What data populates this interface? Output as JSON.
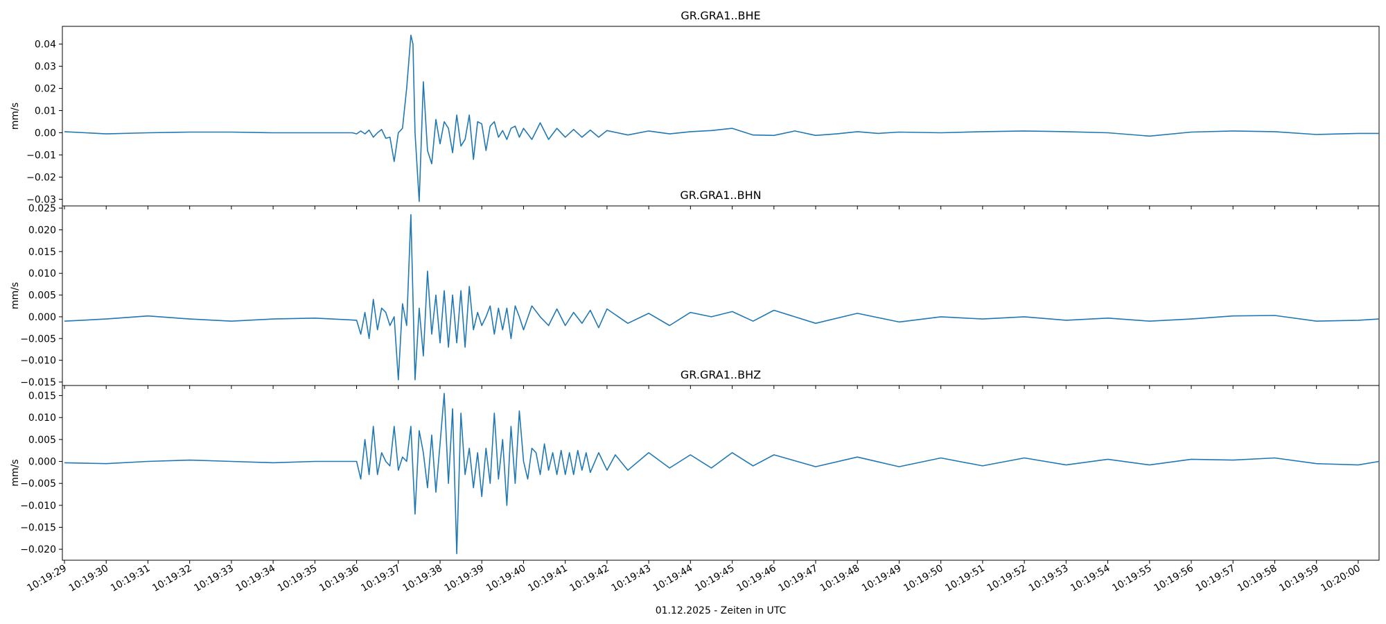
{
  "chart_data": {
    "type": "line",
    "xlabel": "01.12.2025 - Zeiten in UTC",
    "x_tick_labels": [
      "10:19:29",
      "10:19:30",
      "10:19:31",
      "10:19:32",
      "10:19:33",
      "10:19:34",
      "10:19:35",
      "10:19:36",
      "10:19:37",
      "10:19:38",
      "10:19:39",
      "10:19:40",
      "10:19:41",
      "10:19:42",
      "10:19:43",
      "10:19:44",
      "10:19:45",
      "10:19:46",
      "10:19:47",
      "10:19:48",
      "10:19:49",
      "10:19:50",
      "10:19:51",
      "10:19:52",
      "10:19:53",
      "10:19:54",
      "10:19:55",
      "10:19:56",
      "10:19:57",
      "10:19:58",
      "10:19:59",
      "10:20:00"
    ],
    "xlim": [
      "10:19:28.95",
      "10:20:00.50"
    ],
    "line_color": "#1f77b4",
    "grid": false,
    "panels": [
      {
        "title": "GR.GRA1..BHE",
        "ylabel": "mm/s",
        "ylim": [
          -0.033,
          0.048
        ],
        "y_ticks": [
          -0.03,
          -0.02,
          -0.01,
          0.0,
          0.01,
          0.02,
          0.03,
          0.04
        ],
        "y_tick_labels": [
          "−0.03",
          "−0.02",
          "−0.01",
          "0.00",
          "0.01",
          "0.02",
          "0.03",
          "0.04"
        ],
        "series": [
          {
            "x": [
              0.0,
              1.0,
              2.0,
              3.0,
              4.0,
              5.0,
              6.0,
              6.9,
              7.0,
              7.1,
              7.2,
              7.3,
              7.4,
              7.5,
              7.6,
              7.7,
              7.8,
              7.9,
              8.0,
              8.1,
              8.2,
              8.3,
              8.35,
              8.4,
              8.5,
              8.6,
              8.7,
              8.8,
              8.9,
              9.0,
              9.1,
              9.2,
              9.3,
              9.4,
              9.5,
              9.6,
              9.7,
              9.8,
              9.9,
              10.0,
              10.1,
              10.2,
              10.3,
              10.4,
              10.5,
              10.6,
              10.7,
              10.8,
              10.9,
              11.0,
              11.2,
              11.4,
              11.6,
              11.8,
              12.0,
              12.2,
              12.4,
              12.6,
              12.8,
              13.0,
              13.5,
              14.0,
              14.5,
              15.0,
              15.5,
              16.0,
              16.5,
              17.0,
              17.5,
              18.0,
              18.5,
              19.0,
              19.5,
              20.0,
              21.0,
              22.0,
              23.0,
              24.0,
              25.0,
              26.0,
              27.0,
              28.0,
              29.0,
              30.0,
              31.0,
              31.5
            ],
            "y": [
              0.0005,
              -0.0005,
              0.0,
              0.0003,
              0.0003,
              0.0,
              0.0,
              0.0,
              -0.0005,
              0.0008,
              -0.0005,
              0.0012,
              -0.002,
              0.0,
              0.0015,
              -0.0025,
              -0.002,
              -0.013,
              0.0,
              0.002,
              0.02,
              0.044,
              0.04,
              0.0,
              -0.031,
              0.023,
              -0.008,
              -0.014,
              0.006,
              -0.005,
              0.005,
              0.002,
              -0.009,
              0.008,
              -0.006,
              -0.003,
              0.008,
              -0.012,
              0.005,
              0.004,
              -0.008,
              0.003,
              0.005,
              -0.002,
              0.001,
              -0.003,
              0.002,
              0.003,
              -0.002,
              0.002,
              -0.003,
              0.0045,
              -0.003,
              0.002,
              -0.002,
              0.0015,
              -0.002,
              0.0012,
              -0.002,
              0.001,
              -0.001,
              0.0008,
              -0.0005,
              0.0005,
              0.001,
              0.002,
              -0.001,
              -0.0012,
              0.0008,
              -0.0012,
              -0.0005,
              0.0005,
              -0.0003,
              0.0003,
              0.0,
              0.0005,
              0.0008,
              0.0005,
              0.0,
              -0.0015,
              0.0003,
              0.0008,
              0.0005,
              -0.0008,
              -0.0003,
              -0.0003
            ]
          }
        ]
      },
      {
        "title": "GR.GRA1..BHN",
        "ylabel": "mm/s",
        "ylim": [
          -0.0158,
          0.0255
        ],
        "y_ticks": [
          -0.015,
          -0.01,
          -0.005,
          0.0,
          0.005,
          0.01,
          0.015,
          0.02,
          0.025
        ],
        "y_tick_labels": [
          "−0.015",
          "−0.010",
          "−0.005",
          "0.000",
          "0.005",
          "0.010",
          "0.015",
          "0.020",
          "0.025"
        ],
        "series": [
          {
            "x": [
              0.0,
              1.0,
              2.0,
              3.0,
              4.0,
              5.0,
              6.0,
              7.0,
              7.1,
              7.2,
              7.3,
              7.4,
              7.5,
              7.6,
              7.7,
              7.8,
              7.9,
              8.0,
              8.1,
              8.2,
              8.3,
              8.4,
              8.5,
              8.6,
              8.7,
              8.8,
              8.9,
              9.0,
              9.1,
              9.2,
              9.3,
              9.4,
              9.5,
              9.6,
              9.7,
              9.8,
              9.9,
              10.0,
              10.1,
              10.2,
              10.3,
              10.4,
              10.5,
              10.6,
              10.7,
              10.8,
              10.9,
              11.0,
              11.2,
              11.4,
              11.6,
              11.8,
              12.0,
              12.2,
              12.4,
              12.6,
              12.8,
              13.0,
              13.5,
              14.0,
              14.5,
              15.0,
              15.5,
              16.0,
              16.5,
              17.0,
              18.0,
              19.0,
              20.0,
              21.0,
              22.0,
              23.0,
              24.0,
              25.0,
              26.0,
              27.0,
              28.0,
              29.0,
              30.0,
              31.0,
              31.5
            ],
            "y": [
              -0.001,
              -0.0005,
              0.0002,
              -0.0005,
              -0.001,
              -0.0005,
              -0.0003,
              -0.0008,
              -0.004,
              0.001,
              -0.005,
              0.004,
              -0.003,
              0.002,
              0.001,
              -0.002,
              0.0,
              -0.0145,
              0.003,
              -0.002,
              0.0235,
              -0.0145,
              0.002,
              -0.009,
              0.0105,
              -0.004,
              0.005,
              -0.006,
              0.006,
              -0.007,
              0.005,
              -0.006,
              0.006,
              -0.007,
              0.007,
              -0.003,
              0.001,
              -0.002,
              0.0,
              0.0025,
              -0.004,
              0.002,
              -0.003,
              0.002,
              -0.005,
              0.0025,
              0.0,
              -0.003,
              0.0025,
              0.0,
              -0.002,
              0.0018,
              -0.002,
              0.001,
              -0.0015,
              0.0015,
              -0.0025,
              0.0018,
              -0.0015,
              0.0008,
              -0.002,
              0.001,
              0.0,
              0.0012,
              -0.001,
              0.0015,
              -0.0015,
              0.0008,
              -0.0012,
              0.0,
              -0.0005,
              0.0,
              -0.0008,
              -0.0003,
              -0.001,
              -0.0005,
              0.0002,
              0.0003,
              -0.001,
              -0.0008,
              -0.0005
            ]
          }
        ]
      },
      {
        "title": "GR.GRA1..BHZ",
        "ylabel": "mm/s",
        "ylim": [
          -0.0225,
          0.0173
        ],
        "y_ticks": [
          -0.02,
          -0.015,
          -0.01,
          -0.005,
          0.0,
          0.005,
          0.01,
          0.015
        ],
        "y_tick_labels": [
          "−0.020",
          "−0.015",
          "−0.010",
          "−0.005",
          "0.000",
          "0.005",
          "0.010",
          "0.015"
        ],
        "series": [
          {
            "x": [
              0.0,
              1.0,
              2.0,
              3.0,
              4.0,
              5.0,
              6.0,
              7.0,
              7.1,
              7.2,
              7.3,
              7.4,
              7.5,
              7.6,
              7.7,
              7.8,
              7.9,
              8.0,
              8.1,
              8.2,
              8.3,
              8.4,
              8.5,
              8.6,
              8.7,
              8.8,
              8.9,
              9.0,
              9.1,
              9.2,
              9.3,
              9.4,
              9.5,
              9.6,
              9.7,
              9.8,
              9.9,
              10.0,
              10.1,
              10.2,
              10.3,
              10.4,
              10.5,
              10.6,
              10.7,
              10.8,
              10.9,
              11.0,
              11.1,
              11.2,
              11.3,
              11.4,
              11.5,
              11.6,
              11.7,
              11.8,
              11.9,
              12.0,
              12.1,
              12.2,
              12.3,
              12.4,
              12.5,
              12.6,
              12.8,
              13.0,
              13.2,
              13.5,
              14.0,
              14.5,
              15.0,
              15.5,
              16.0,
              16.5,
              17.0,
              18.0,
              19.0,
              20.0,
              21.0,
              22.0,
              23.0,
              24.0,
              25.0,
              26.0,
              27.0,
              28.0,
              29.0,
              30.0,
              31.0,
              31.5
            ],
            "y": [
              -0.0003,
              -0.0005,
              0.0,
              0.0003,
              0.0,
              -0.0003,
              0.0,
              0.0,
              -0.004,
              0.005,
              -0.003,
              0.008,
              -0.003,
              0.002,
              0.0,
              -0.001,
              0.008,
              -0.002,
              0.001,
              0.0,
              0.008,
              -0.012,
              0.007,
              0.002,
              -0.006,
              0.006,
              -0.007,
              0.004,
              0.0155,
              -0.005,
              0.012,
              -0.021,
              0.011,
              -0.003,
              0.003,
              -0.006,
              0.002,
              -0.008,
              0.003,
              -0.005,
              0.011,
              -0.004,
              0.005,
              -0.01,
              0.008,
              -0.005,
              0.0115,
              0.0,
              -0.004,
              0.003,
              0.002,
              -0.003,
              0.004,
              -0.002,
              0.002,
              -0.003,
              0.0025,
              -0.003,
              0.002,
              -0.003,
              0.0025,
              -0.002,
              0.002,
              -0.0025,
              0.002,
              -0.002,
              0.0015,
              -0.002,
              0.002,
              -0.0015,
              0.0015,
              -0.0015,
              0.002,
              -0.001,
              0.0015,
              -0.0012,
              0.001,
              -0.0012,
              0.0008,
              -0.001,
              0.0008,
              -0.0008,
              0.0005,
              -0.0008,
              0.0005,
              0.0003,
              0.0008,
              -0.0005,
              -0.0008,
              0.0
            ]
          }
        ]
      }
    ]
  }
}
